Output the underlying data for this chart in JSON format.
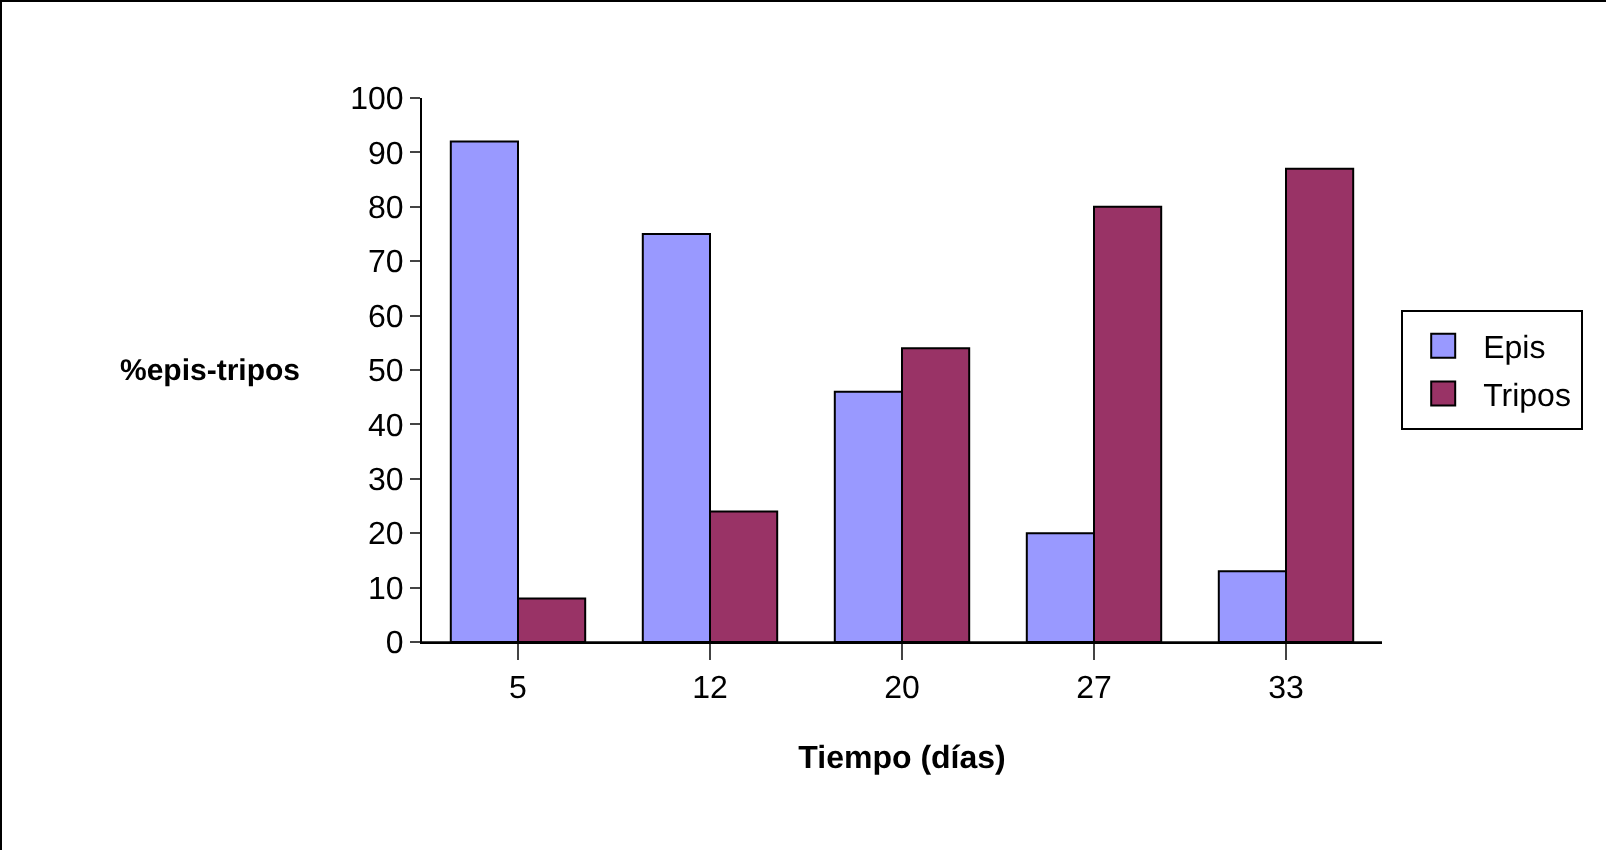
{
  "chart_data": {
    "type": "bar",
    "xlabel": "Tiempo (días)",
    "ylabel": "%epis-tripos",
    "categories": [
      "5",
      "12",
      "20",
      "27",
      "33"
    ],
    "series": [
      {
        "name": "Epis",
        "color": "#9999ff",
        "values": [
          92,
          75,
          46,
          20,
          13
        ]
      },
      {
        "name": "Tripos",
        "color": "#993366",
        "values": [
          8,
          24,
          54,
          80,
          87
        ]
      }
    ],
    "ylim": [
      0,
      100
    ],
    "yticks": [
      0,
      10,
      20,
      30,
      40,
      50,
      60,
      70,
      80,
      90,
      100
    ],
    "grid": false,
    "legend": "right"
  }
}
